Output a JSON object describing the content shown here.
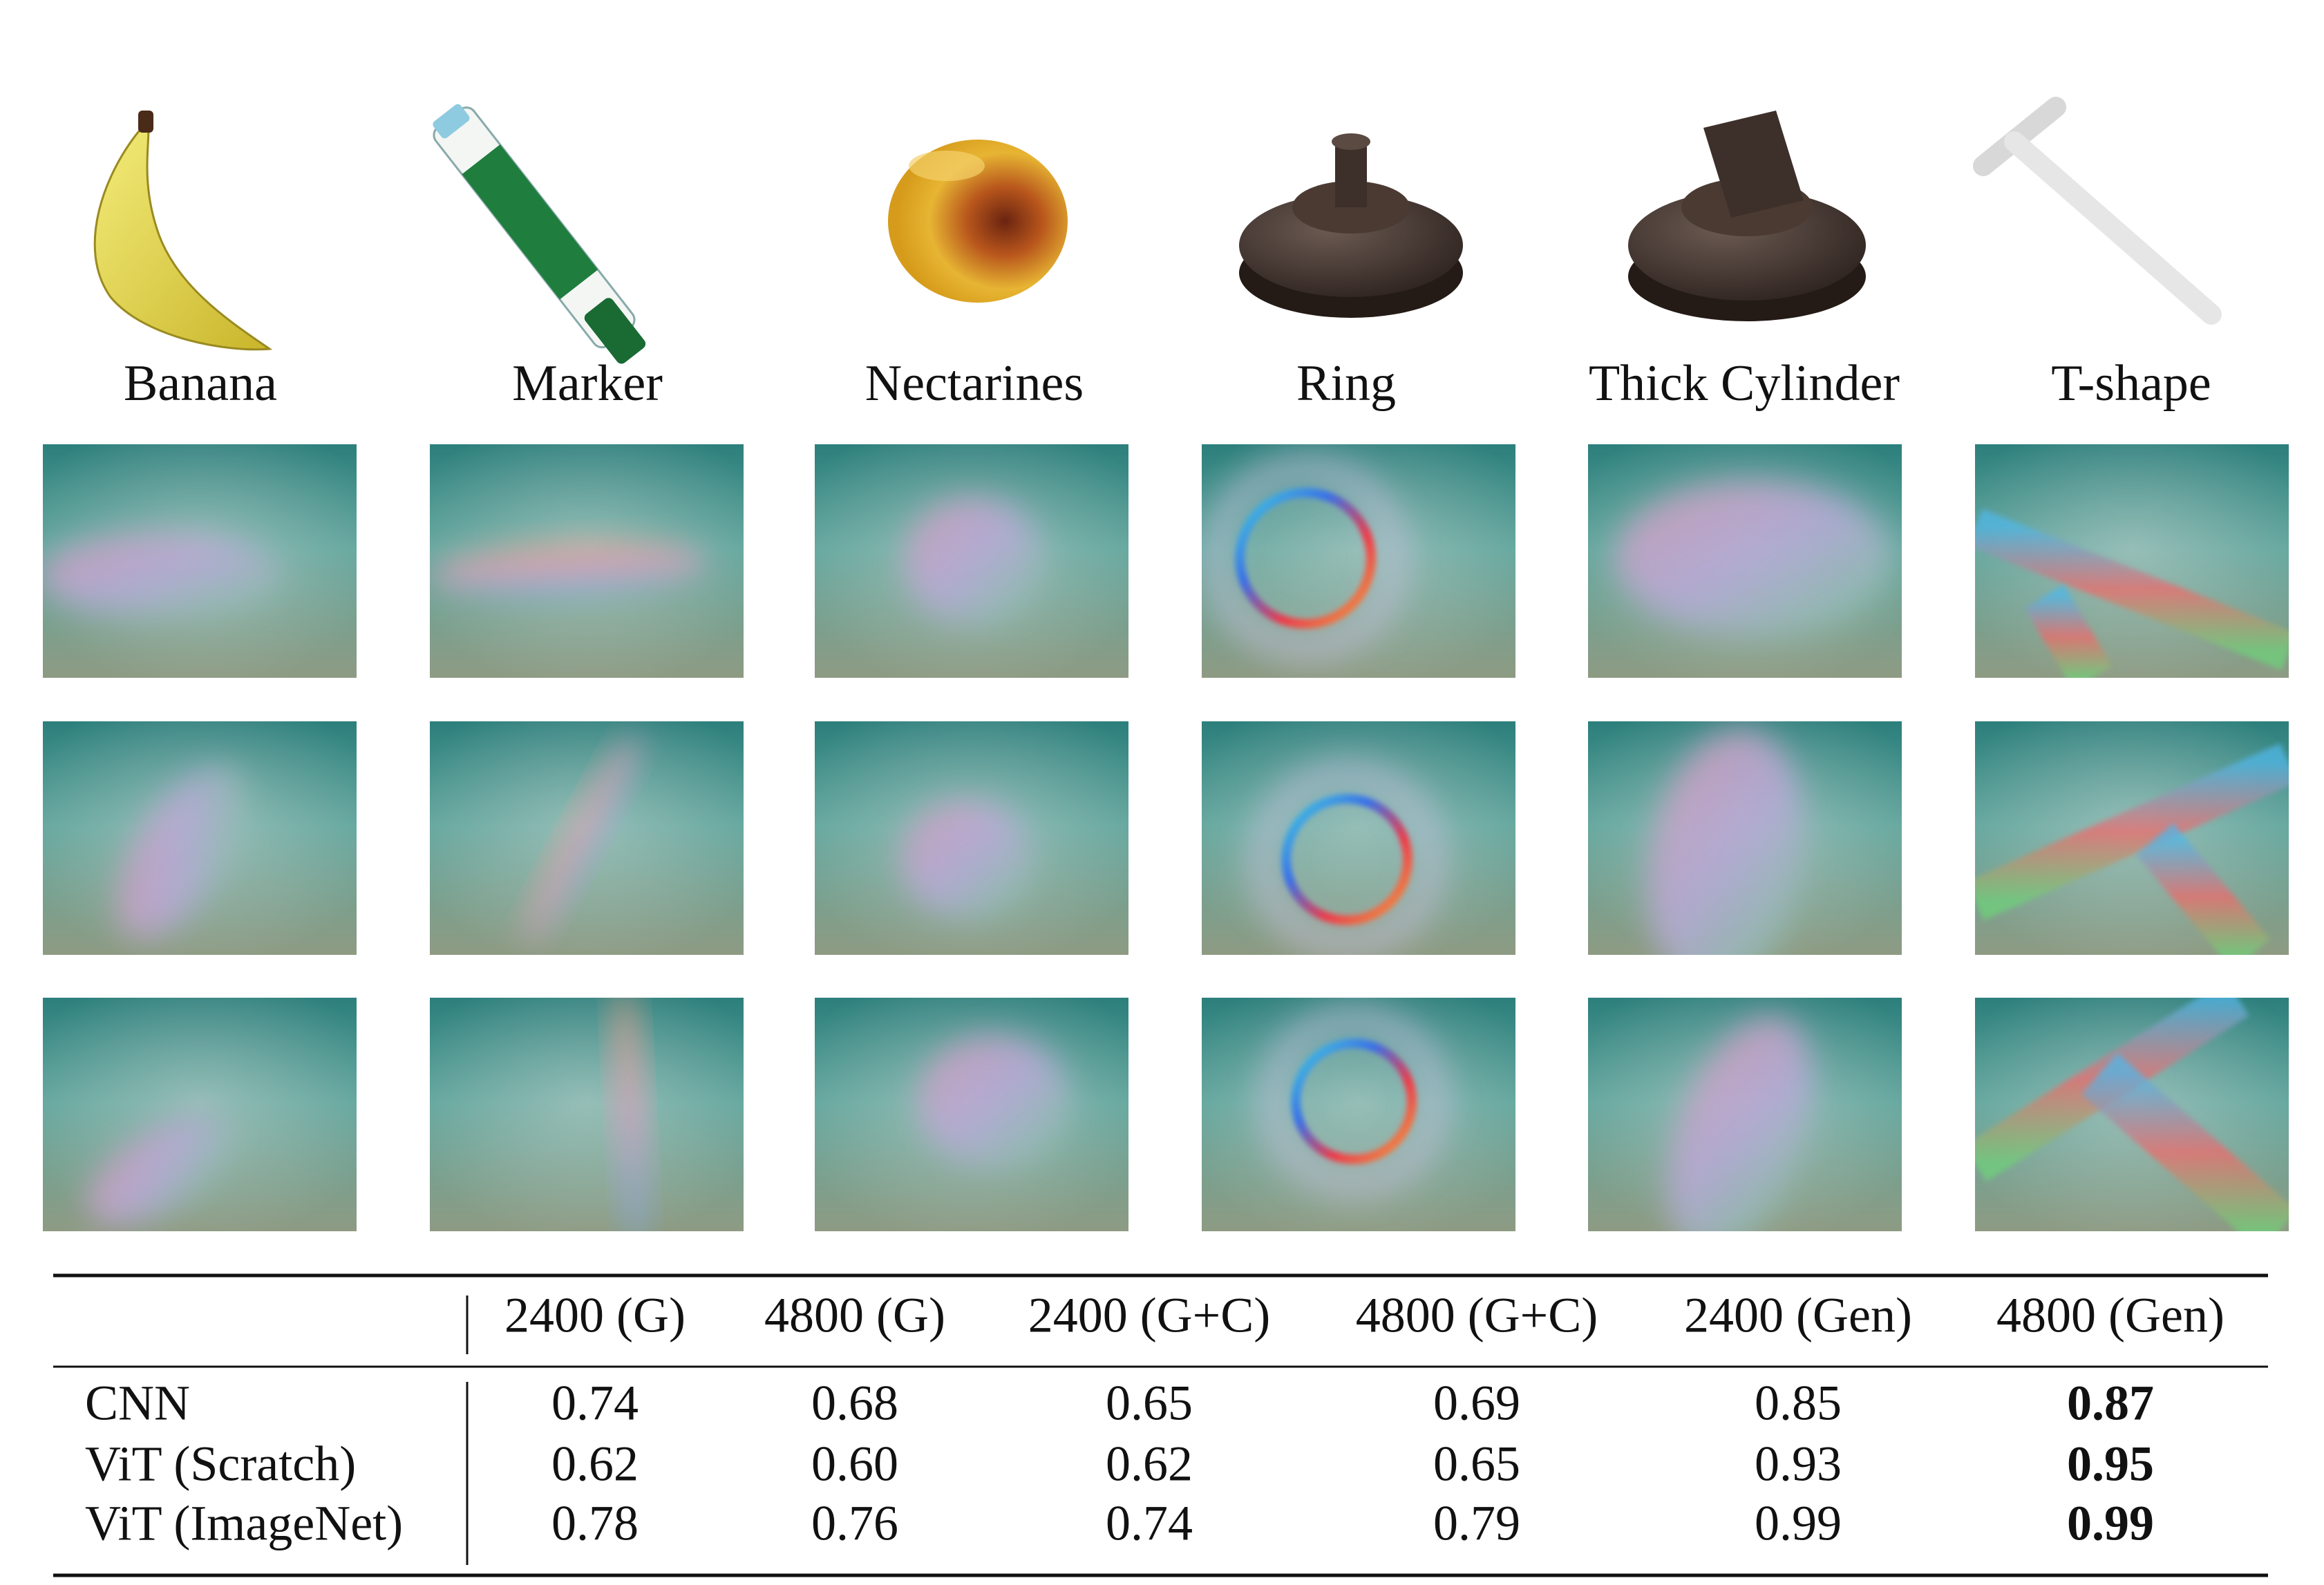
{
  "objects": {
    "labels": [
      "Banana",
      "Marker",
      "Nectarines",
      "Ring",
      "Thick Cylinder",
      "T-shape"
    ]
  },
  "table": {
    "header": [
      "2400 (G)",
      "4800 (G)",
      "2400 (G+C)",
      "4800 (G+C)",
      "2400 (Gen)",
      "4800 (Gen)"
    ],
    "rows": [
      [
        "CNN",
        "0.74",
        "0.68",
        "0.65",
        "0.69",
        "0.85",
        "0.87"
      ],
      [
        "ViT (Scratch)",
        "0.62",
        "0.60",
        "0.62",
        "0.65",
        "0.93",
        "0.95"
      ],
      [
        "ViT (ImageNet)",
        "0.78",
        "0.76",
        "0.74",
        "0.79",
        "0.99",
        "0.99"
      ]
    ]
  }
}
